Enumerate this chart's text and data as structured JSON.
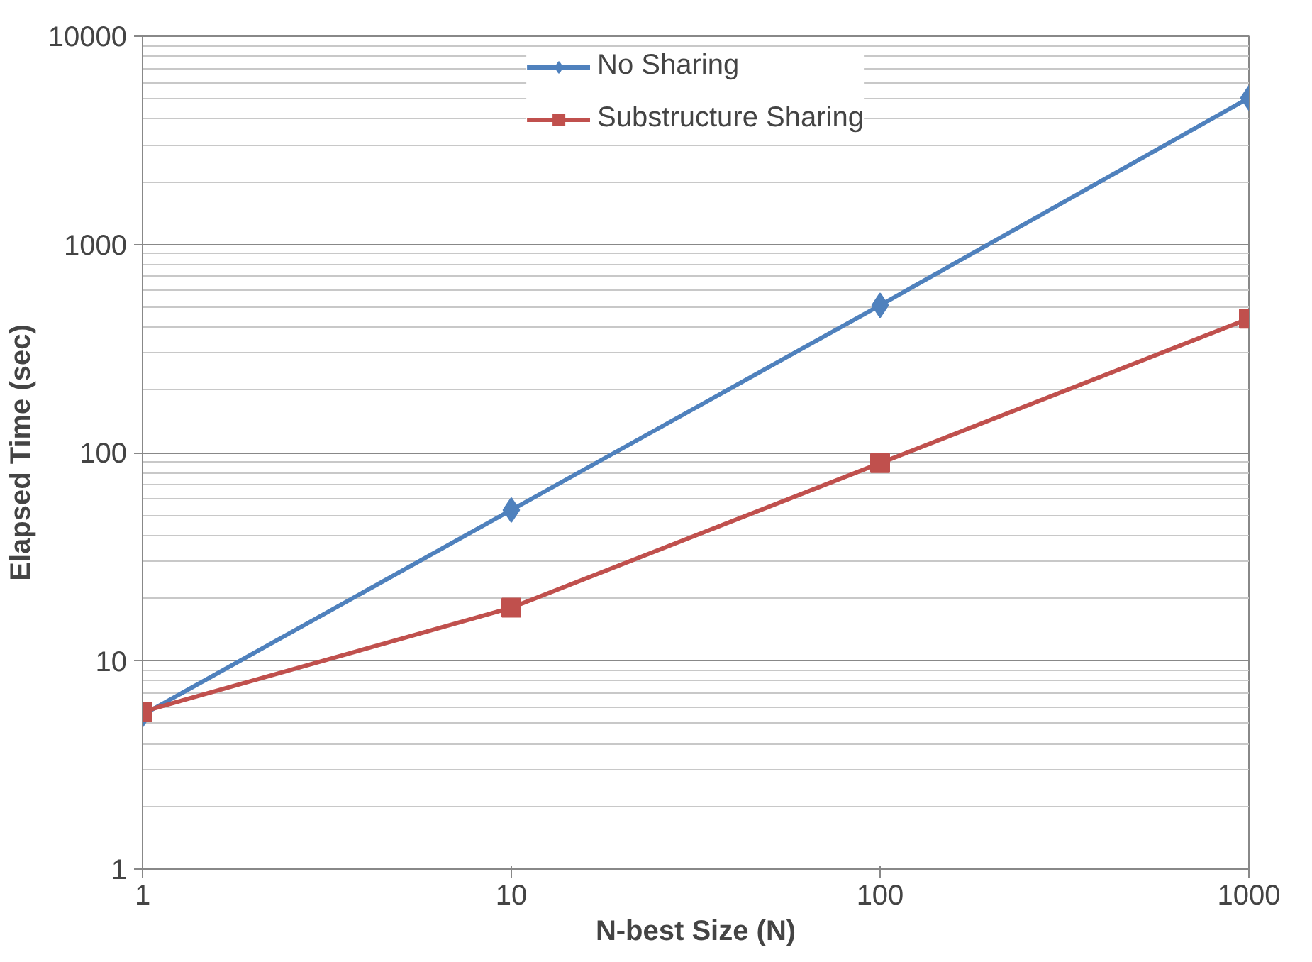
{
  "chart_data": {
    "type": "line",
    "xlabel": "N-best Size (N)",
    "ylabel": "Elapsed Time (sec)",
    "x": [
      1,
      10,
      100,
      1000
    ],
    "series": [
      {
        "name": "No Sharing",
        "color": "#4f81bd",
        "marker": "diamond",
        "values": [
          5.5,
          53,
          510,
          5050
        ]
      },
      {
        "name": "Substructure Sharing",
        "color": "#c0504d",
        "marker": "square",
        "values": [
          5.7,
          18,
          89,
          440
        ]
      }
    ],
    "log": "xy",
    "xlim": [
      1,
      1000
    ],
    "ylim": [
      1,
      10000
    ],
    "xticks": [
      1,
      10,
      100,
      1000
    ],
    "yticks": [
      1,
      10,
      100,
      1000,
      10000
    ],
    "grid": "y",
    "legend": "top",
    "line_style": "solid"
  }
}
